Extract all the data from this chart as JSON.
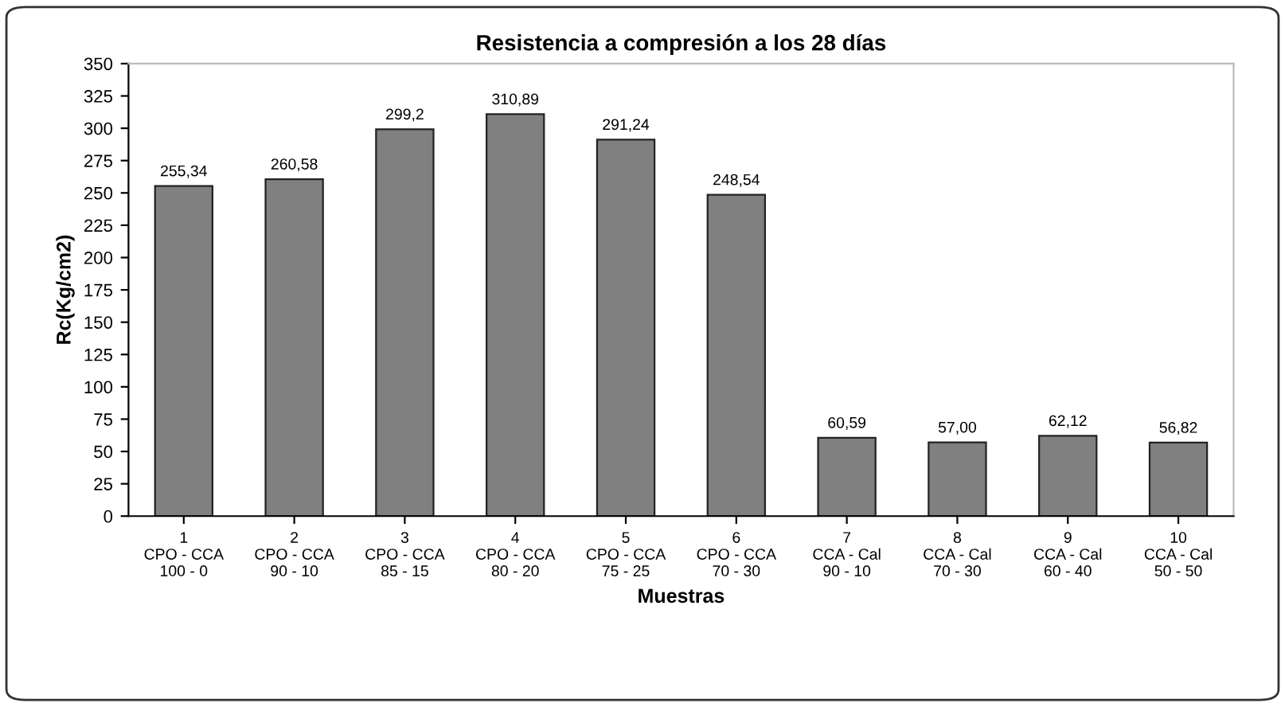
{
  "chart_data": {
    "type": "bar",
    "title": "Resistencia a compresión a los 28 días",
    "xlabel": "Muestras",
    "ylabel": "Rc(Kg/cm2)",
    "categories": [
      "1\nCPO - CCA\n100 - 0",
      "2\nCPO - CCA\n90 - 10",
      "3\nCPO - CCA\n85 - 15",
      "4\nCPO - CCA\n80 - 20",
      "5\nCPO - CCA\n75 - 25",
      "6\nCPO - CCA\n70 - 30",
      "7\nCCA - Cal\n90 - 10",
      "8\nCCA - Cal\n70 - 30",
      "9\nCCA - Cal\n60 - 40",
      "10\nCCA - Cal\n50 - 50"
    ],
    "values": [
      255.34,
      260.58,
      299.2,
      310.89,
      291.24,
      248.54,
      60.59,
      57.0,
      62.12,
      56.82
    ],
    "value_labels": [
      "255,34",
      "260,58",
      "299,2",
      "310,89",
      "291,24",
      "248,54",
      "60,59",
      "57,00",
      "62,12",
      "56,82"
    ],
    "color": "#808080",
    "ylim": [
      0,
      350
    ],
    "yticks": [
      0,
      25,
      50,
      75,
      100,
      125,
      150,
      175,
      200,
      225,
      250,
      275,
      300,
      325,
      350
    ],
    "grid": false,
    "legend": false
  }
}
